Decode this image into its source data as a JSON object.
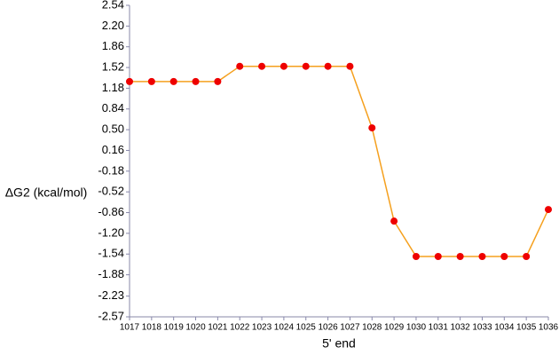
{
  "chart_data": {
    "type": "line",
    "x_label": "5' end",
    "y_label": "ΔG2 (kcal/mol)",
    "x": [
      1017,
      1018,
      1019,
      1020,
      1021,
      1022,
      1023,
      1024,
      1025,
      1026,
      1027,
      1028,
      1029,
      1030,
      1031,
      1032,
      1033,
      1034,
      1035,
      1036
    ],
    "series": [
      {
        "color": "#f5a01e",
        "marker_color": "#ee0000",
        "values": [
          1.29,
          1.29,
          1.29,
          1.29,
          1.29,
          1.54,
          1.54,
          1.54,
          1.54,
          1.54,
          1.54,
          0.53,
          -1.0,
          -1.58,
          -1.58,
          -1.58,
          -1.58,
          -1.58,
          -1.58,
          -0.81
        ]
      }
    ],
    "xlim": [
      1017,
      1036
    ],
    "xticks": [
      1017,
      1018,
      1019,
      1020,
      1021,
      1022,
      1023,
      1024,
      1025,
      1026,
      1027,
      1028,
      1029,
      1030,
      1031,
      1032,
      1033,
      1034,
      1035,
      1036
    ],
    "ylim": [
      -2.57,
      2.54
    ],
    "yticks": [
      2.54,
      {
        "value": 2.2,
        "label": "2.20"
      },
      1.86,
      1.52,
      1.18,
      0.84,
      {
        "value": 0.5,
        "label": "0.50"
      },
      0.16,
      -0.18,
      -0.52,
      -0.86,
      {
        "value": -1.2,
        "label": "-1.20"
      },
      -1.54,
      -1.88,
      -2.23,
      -2.57
    ],
    "grid": false
  }
}
